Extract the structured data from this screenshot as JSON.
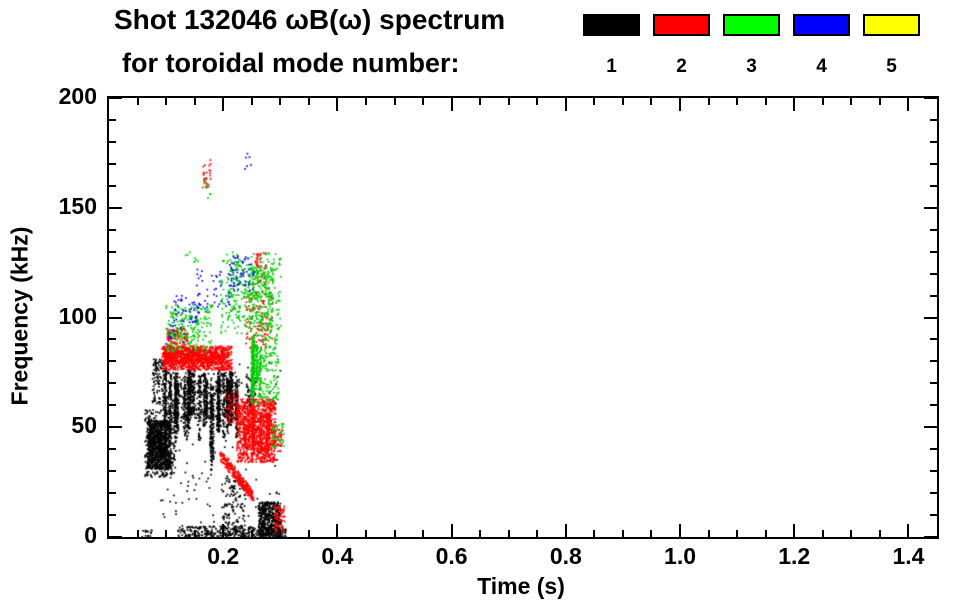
{
  "title": {
    "line1": "Shot 132046 ωB(ω) spectrum",
    "line2": "for toroidal mode number:"
  },
  "legend": {
    "modes": [
      {
        "label": "1",
        "color": "#000000"
      },
      {
        "label": "2",
        "color": "#ff0000"
      },
      {
        "label": "3",
        "color": "#00ff00"
      },
      {
        "label": "4",
        "color": "#0000ff"
      },
      {
        "label": "5",
        "color": "#ffff00"
      }
    ]
  },
  "chart_data": {
    "type": "scatter",
    "title": "Shot 132046 ωB(ω) spectrum for toroidal mode number: 1 2 3 4 5",
    "xlabel": "Time (s)",
    "ylabel": "Frequency (kHz)",
    "xlim": [
      0.0,
      1.45
    ],
    "ylim": [
      0,
      200
    ],
    "grid": false,
    "legend_position": "top-right",
    "xticks": {
      "values": [
        0.2,
        0.4,
        0.6,
        0.8,
        1.0,
        1.2,
        1.4
      ],
      "labels": [
        "0.2",
        "0.4",
        "0.6",
        "0.8",
        "1.0",
        "1.2",
        "1.4"
      ],
      "minor_step": 0.05
    },
    "yticks": {
      "values": [
        0,
        50,
        100,
        150,
        200
      ],
      "labels": [
        "0",
        "50",
        "100",
        "150",
        "200"
      ],
      "minor_step": 10
    },
    "series": [
      {
        "name": "1",
        "color": "#000000",
        "clusters": [
          {
            "type": "scatter",
            "t": [
              0.068,
              0.108
            ],
            "f": [
              31,
              53
            ],
            "n": 900
          },
          {
            "type": "scatter",
            "t": [
              0.063,
              0.118
            ],
            "f": [
              27,
              58
            ],
            "n": 350
          },
          {
            "type": "vstreaks",
            "t": [
              0.098,
              0.225
            ],
            "f": [
              44,
              78
            ],
            "streaks": 26,
            "pts": 60
          },
          {
            "type": "scatter",
            "t": [
              0.095,
              0.228
            ],
            "f": [
              54,
              75
            ],
            "n": 420
          },
          {
            "type": "scatter",
            "t": [
              0.076,
              0.1
            ],
            "f": [
              60,
              81
            ],
            "n": 130
          },
          {
            "type": "vstreaks",
            "t": [
              0.165,
              0.185
            ],
            "f": [
              28,
              70
            ],
            "streaks": 3,
            "pts": 60
          },
          {
            "type": "scatter",
            "t": [
              0.24,
              0.258
            ],
            "f": [
              58,
              74
            ],
            "n": 70
          },
          {
            "type": "scatter",
            "t": [
              0.12,
              0.31
            ],
            "f": [
              0,
              5
            ],
            "n": 330
          },
          {
            "type": "scatter",
            "t": [
              0.058,
              0.075
            ],
            "f": [
              0,
              3
            ],
            "n": 15
          },
          {
            "type": "scatter",
            "t": [
              0.262,
              0.301
            ],
            "f": [
              0,
              16
            ],
            "n": 480
          },
          {
            "type": "scatter",
            "t": [
              0.198,
              0.238
            ],
            "f": [
              0,
              27
            ],
            "n": 130
          },
          {
            "type": "scatter",
            "t": [
              0.08,
              0.305
            ],
            "f": [
              4,
              80
            ],
            "n": 160
          }
        ]
      },
      {
        "name": "2",
        "color": "#ff0000",
        "clusters": [
          {
            "type": "scatter",
            "t": [
              0.093,
              0.215
            ],
            "f": [
              76,
              87
            ],
            "n": 850
          },
          {
            "type": "scatter",
            "t": [
              0.096,
              0.2
            ],
            "f": [
              79,
              85
            ],
            "n": 500
          },
          {
            "type": "scatter",
            "t": [
              0.102,
              0.138
            ],
            "f": [
              86,
              95
            ],
            "n": 120
          },
          {
            "type": "scatter",
            "t": [
              0.224,
              0.292
            ],
            "f": [
              34,
              63
            ],
            "n": 950
          },
          {
            "type": "vstreaks",
            "t": [
              0.228,
              0.286
            ],
            "f": [
              35,
              62
            ],
            "streaks": 9,
            "pts": 45
          },
          {
            "type": "chirp",
            "t": [
              0.196,
              0.252
            ],
            "f": [
              37,
              19
            ],
            "spread": 5,
            "n": 260
          },
          {
            "type": "scatter",
            "t": [
              0.238,
              0.286
            ],
            "f": [
              86,
              112
            ],
            "n": 110
          },
          {
            "type": "scatter",
            "t": [
              0.256,
              0.276
            ],
            "f": [
              114,
              130
            ],
            "n": 45
          },
          {
            "type": "scatter",
            "t": [
              0.164,
              0.178
            ],
            "f": [
              159,
              172
            ],
            "n": 26
          },
          {
            "type": "scatter",
            "t": [
              0.29,
              0.308
            ],
            "f": [
              2,
              14
            ],
            "n": 60
          },
          {
            "type": "scatter",
            "t": [
              0.286,
              0.304
            ],
            "f": [
              39,
              49
            ],
            "n": 55
          },
          {
            "type": "scatter",
            "t": [
              0.203,
              0.226
            ],
            "f": [
              52,
              66
            ],
            "n": 60
          }
        ]
      },
      {
        "name": "3",
        "color": "#00cc00",
        "clusters": [
          {
            "type": "scatter",
            "t": [
              0.1,
              0.182
            ],
            "f": [
              84,
              106
            ],
            "n": 240
          },
          {
            "type": "scatter",
            "t": [
              0.196,
              0.302
            ],
            "f": [
              92,
              130
            ],
            "n": 260
          },
          {
            "type": "scatter",
            "t": [
              0.243,
              0.288
            ],
            "f": [
              95,
              123
            ],
            "n": 220
          },
          {
            "type": "vstreaks",
            "t": [
              0.248,
              0.27
            ],
            "f": [
              58,
              96
            ],
            "streaks": 6,
            "pts": 55
          },
          {
            "type": "scatter",
            "t": [
              0.252,
              0.298
            ],
            "f": [
              60,
              92
            ],
            "n": 180
          },
          {
            "type": "scatter",
            "t": [
              0.286,
              0.306
            ],
            "f": [
              40,
              52
            ],
            "n": 40
          },
          {
            "type": "scatter",
            "t": [
              0.132,
              0.158
            ],
            "f": [
              124,
              132
            ],
            "n": 8
          },
          {
            "type": "scatter",
            "t": [
              0.166,
              0.18
            ],
            "f": [
              152,
              163
            ],
            "n": 8
          },
          {
            "type": "scatter",
            "t": [
              0.208,
              0.24
            ],
            "f": [
              100,
              126
            ],
            "n": 70
          }
        ]
      },
      {
        "name": "4",
        "color": "#0000ff",
        "clusters": [
          {
            "type": "scatter",
            "t": [
              0.112,
              0.158
            ],
            "f": [
              96,
              112
            ],
            "n": 45
          },
          {
            "type": "scatter",
            "t": [
              0.152,
              0.212
            ],
            "f": [
              104,
              123
            ],
            "n": 40
          },
          {
            "type": "scatter",
            "t": [
              0.21,
              0.254
            ],
            "f": [
              112,
              128
            ],
            "n": 55
          },
          {
            "type": "scatter",
            "t": [
              0.238,
              0.254
            ],
            "f": [
              167,
              177
            ],
            "n": 6
          },
          {
            "type": "scatter",
            "t": [
              0.1,
              0.132
            ],
            "f": [
              88,
              99
            ],
            "n": 14
          }
        ]
      },
      {
        "name": "5",
        "color": "#ffff00",
        "clusters": []
      }
    ]
  }
}
